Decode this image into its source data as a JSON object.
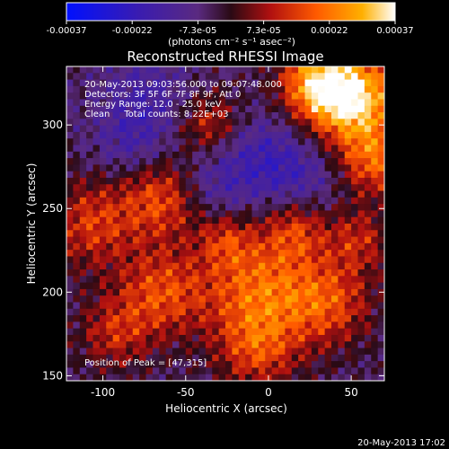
{
  "colorbar": {
    "tick_labels": [
      "-0.00037",
      "-0.00022",
      "-7.3e-05",
      "7.3e-05",
      "0.00022",
      "0.00037"
    ],
    "units_label": "(photons cm⁻² s⁻¹ asec⁻²)",
    "colors": [
      "#0010ff",
      "#3a1cb0",
      "#5a2a80",
      "#2a0a14",
      "#b01010",
      "#ff5a00",
      "#ffb000",
      "#ffffff"
    ]
  },
  "image": {
    "title": "Reconstructed RHESSI Image",
    "annotations": [
      "20-May-2013 09:03:56.000 to 09:07:48.000",
      "Detectors: 3F 5F 6F 7F 8F 9F, Att 0",
      "Energy Range: 12.0 - 25.0 keV",
      "Clean     Total counts: 8.22E+03"
    ],
    "peak_label": "Position of Peak = [47,315]",
    "xlabel": "Heliocentric X (arcsec)",
    "ylabel": "Heliocentric Y (arcsec)",
    "x_ticks": [
      {
        "v": -100,
        "label": "-100"
      },
      {
        "v": -50,
        "label": "-50"
      },
      {
        "v": 0,
        "label": "0"
      },
      {
        "v": 50,
        "label": "50"
      }
    ],
    "y_ticks": [
      {
        "v": 150,
        "label": "150"
      },
      {
        "v": 200,
        "label": "200"
      },
      {
        "v": 250,
        "label": "250"
      },
      {
        "v": 300,
        "label": "300"
      }
    ],
    "xlim": [
      -122,
      70
    ],
    "ylim": [
      147,
      335
    ],
    "peak_position": [
      47,
      315
    ]
  },
  "footer": {
    "timestamp": "20-May-2013 17:02"
  }
}
